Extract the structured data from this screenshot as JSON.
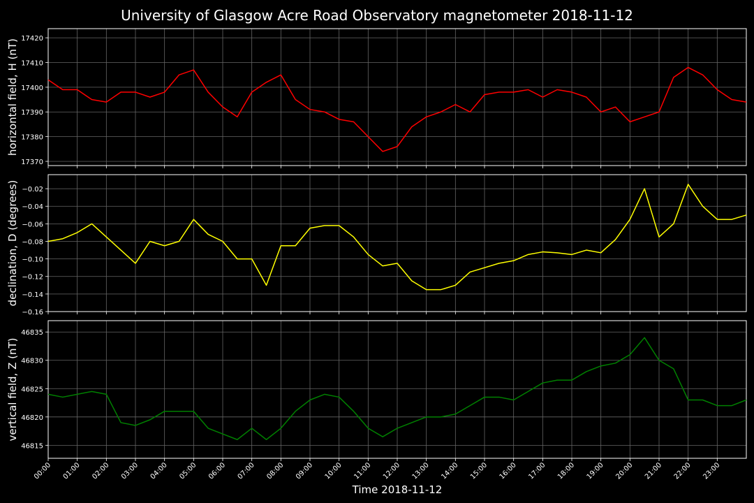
{
  "chart_data": {
    "type": "line",
    "title": "University of Glasgow Acre Road Observatory magnetometer 2018-11-12",
    "xlabel": "Time 2018-11-12",
    "grid": true,
    "xlim": [
      0,
      24
    ],
    "xticks": [
      {
        "value": 0,
        "label": "00:00"
      },
      {
        "value": 1,
        "label": "01:00"
      },
      {
        "value": 2,
        "label": "02:00"
      },
      {
        "value": 3,
        "label": "03:00"
      },
      {
        "value": 4,
        "label": "04:00"
      },
      {
        "value": 5,
        "label": "05:00"
      },
      {
        "value": 6,
        "label": "06:00"
      },
      {
        "value": 7,
        "label": "07:00"
      },
      {
        "value": 8,
        "label": "08:00"
      },
      {
        "value": 9,
        "label": "09:00"
      },
      {
        "value": 10,
        "label": "10:00"
      },
      {
        "value": 11,
        "label": "11:00"
      },
      {
        "value": 12,
        "label": "12:00"
      },
      {
        "value": 13,
        "label": "13:00"
      },
      {
        "value": 14,
        "label": "14:00"
      },
      {
        "value": 15,
        "label": "15:00"
      },
      {
        "value": 16,
        "label": "16:00"
      },
      {
        "value": 17,
        "label": "17:00"
      },
      {
        "value": 18,
        "label": "18:00"
      },
      {
        "value": 19,
        "label": "19:00"
      },
      {
        "value": 20,
        "label": "20:00"
      },
      {
        "value": 21,
        "label": "21:00"
      },
      {
        "value": 22,
        "label": "22:00"
      },
      {
        "value": 23,
        "label": "23:00"
      }
    ],
    "x": [
      0,
      0.5,
      1,
      1.5,
      2,
      2.5,
      3,
      3.5,
      4,
      4.5,
      5,
      5.5,
      6,
      6.5,
      7,
      7.5,
      8,
      8.5,
      9,
      9.5,
      10,
      10.5,
      11,
      11.5,
      12,
      12.5,
      13,
      13.5,
      14,
      14.5,
      15,
      15.5,
      16,
      16.5,
      17,
      17.5,
      18,
      18.5,
      19,
      19.5,
      20,
      20.5,
      21,
      21.5,
      22,
      22.5,
      23,
      23.5,
      24
    ],
    "panels": [
      {
        "ylabel": "horizontal field, H (nT)",
        "color": "#ff0000",
        "ylim": [
          17368.3,
          17423.7
        ],
        "yticks": [
          17370,
          17380,
          17390,
          17400,
          17410,
          17420
        ],
        "values": [
          17403,
          17399,
          17399,
          17395,
          17394,
          17398,
          17398,
          17396,
          17398,
          17405,
          17407,
          17398,
          17392,
          17388,
          17398,
          17402,
          17405,
          17395,
          17391,
          17390,
          17387,
          17386,
          17380,
          17374,
          17376,
          17384,
          17388,
          17390,
          17393,
          17390,
          17397,
          17398,
          17398,
          17399,
          17396,
          17399,
          17398,
          17396,
          17390,
          17392,
          17386,
          17388,
          17390,
          17404,
          17408,
          17405,
          17399,
          17395,
          17394
        ]
      },
      {
        "ylabel": "declination, D (degrees)",
        "color": "#ffff00",
        "ylim": [
          -0.16,
          -0.004
        ],
        "yticks": [
          {
            "value": -0.16,
            "label": "−0.16"
          },
          {
            "value": -0.14,
            "label": "−0.14"
          },
          {
            "value": -0.12,
            "label": "−0.12"
          },
          {
            "value": -0.1,
            "label": "−0.10"
          },
          {
            "value": -0.08,
            "label": "−0.08"
          },
          {
            "value": -0.06,
            "label": "−0.06"
          },
          {
            "value": -0.04,
            "label": "−0.04"
          },
          {
            "value": -0.02,
            "label": "−0.02"
          }
        ],
        "values": [
          -0.08,
          -0.077,
          -0.07,
          -0.06,
          -0.075,
          -0.09,
          -0.105,
          -0.08,
          -0.085,
          -0.08,
          -0.055,
          -0.072,
          -0.08,
          -0.1,
          -0.1,
          -0.13,
          -0.085,
          -0.085,
          -0.065,
          -0.062,
          -0.062,
          -0.075,
          -0.095,
          -0.108,
          -0.105,
          -0.125,
          -0.135,
          -0.135,
          -0.13,
          -0.115,
          -0.11,
          -0.105,
          -0.102,
          -0.095,
          -0.092,
          -0.093,
          -0.095,
          -0.09,
          -0.093,
          -0.078,
          -0.055,
          -0.02,
          -0.075,
          -0.06,
          -0.015,
          -0.04,
          -0.055,
          -0.055,
          -0.05
        ]
      },
      {
        "ylabel": "vertical field, Z (nT)",
        "color": "#008000",
        "ylim": [
          46812.7,
          46837
        ],
        "yticks": [
          46815,
          46820,
          46825,
          46830,
          46835
        ],
        "values": [
          46824,
          46823.5,
          46824,
          46824.5,
          46824,
          46819,
          46818.5,
          46819.5,
          46821,
          46821,
          46821,
          46818,
          46817,
          46816,
          46818,
          46816,
          46818,
          46821,
          46823,
          46824,
          46823.5,
          46821,
          46818,
          46816.5,
          46818,
          46819,
          46820,
          46820,
          46820.5,
          46822,
          46823.5,
          46823.5,
          46823,
          46824.5,
          46826,
          46826.5,
          46826.5,
          46828,
          46829,
          46829.5,
          46831,
          46834,
          46830,
          46828.5,
          46823,
          46823,
          46822,
          46822,
          46823
        ]
      }
    ]
  }
}
